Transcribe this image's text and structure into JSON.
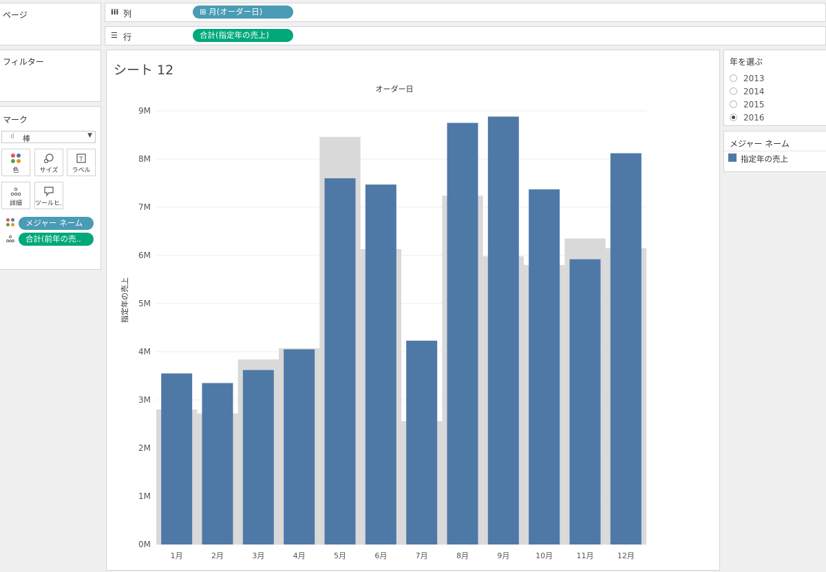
{
  "pages_title": "ページ",
  "filters_title": "フィルター",
  "marks": {
    "title": "マーク",
    "type_label": "棒",
    "buttons": [
      {
        "icon": "color-icon",
        "label": "色"
      },
      {
        "icon": "size-icon",
        "label": "サイズ"
      },
      {
        "icon": "label-icon",
        "label": "ラベル"
      },
      {
        "icon": "detail-icon",
        "label": "詳細"
      },
      {
        "icon": "tooltip-icon",
        "label": "ツールヒ…"
      }
    ],
    "pills": [
      {
        "icon": "color-icon",
        "label": "メジャー ネーム"
      },
      {
        "icon": "detail-icon",
        "label": "合計(前年の売.."
      }
    ]
  },
  "shelves": {
    "columns": {
      "label": "列",
      "pill": "⊞ 月(オーダー日)"
    },
    "rows": {
      "label": "行",
      "pill": "合計(指定年の売上)"
    }
  },
  "sheet_title": "シート 12",
  "year_param": {
    "title": "年を選ぶ",
    "options": [
      "2013",
      "2014",
      "2015",
      "2016"
    ],
    "selected": "2016"
  },
  "legend": {
    "title": "メジャー ネーム",
    "item": "指定年の売上",
    "color": "#4e79a7"
  },
  "colors": {
    "bar": "#4e79a7",
    "background_bar": "#d9d9d9",
    "pill_blue": "#4a9bb5",
    "pill_green": "#00a87a"
  },
  "chart_data": {
    "type": "bar",
    "title": "オーダー日",
    "ylabel": "指定年の売上",
    "categories": [
      "1月",
      "2月",
      "3月",
      "4月",
      "5月",
      "6月",
      "7月",
      "8月",
      "9月",
      "10月",
      "11月",
      "12月"
    ],
    "ylim": [
      0,
      9
    ],
    "y_ticks": [
      "0M",
      "1M",
      "2M",
      "3M",
      "4M",
      "5M",
      "6M",
      "7M",
      "8M",
      "9M"
    ],
    "series": [
      {
        "name": "指定年の売上",
        "values": [
          3.55,
          3.35,
          3.62,
          4.05,
          7.6,
          7.47,
          4.23,
          8.75,
          8.88,
          7.37,
          5.92,
          8.12
        ]
      },
      {
        "values": [
          2.8,
          2.72,
          3.84,
          4.07,
          8.46,
          6.13,
          2.56,
          7.24,
          5.98,
          5.8,
          6.35,
          6.15
        ]
      }
    ],
    "grid": true
  }
}
